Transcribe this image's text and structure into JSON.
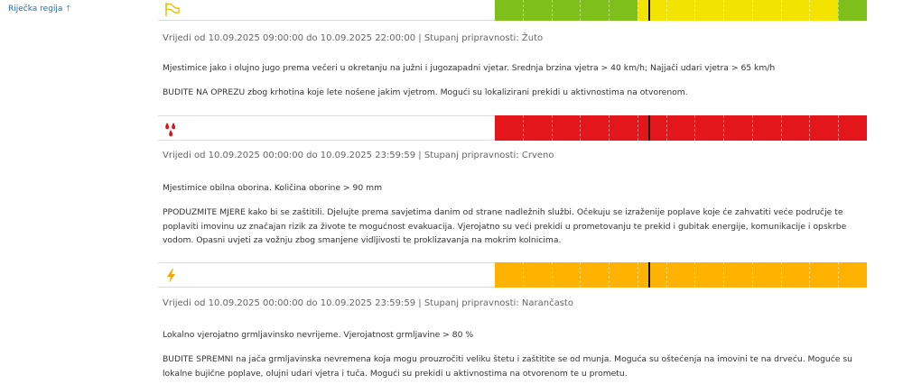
{
  "sidebar": {
    "region_link": "Riječka regija",
    "region_arrow": "🡑"
  },
  "warnings": [
    {
      "icon": "wind-flag-icon",
      "level_color": "#f2e300",
      "timeline_colors": [
        "#7fbf1b",
        "#7fbf1b",
        "#7fbf1b",
        "#7fbf1b",
        "#7fbf1b",
        "#f2e300",
        "#f2e300",
        "#f2e300",
        "#f2e300",
        "#f2e300",
        "#f2e300",
        "#f2e300",
        "#7fbf1b"
      ],
      "validity": "Vrijedi od 10.09.2025 09:00:00 do 10.09.2025 22:00:00 | Stupanj pripravnosti: Žuto",
      "description": "Mjestimice jako i olujno jugo prema večeri u okretanju na južni i jugozapadni vjetar. Srednja brzina vjetra > 40 km/h; Najjači udari vjetra > 65 km/h",
      "advice": "BUDITE NA OPREZU zbog krhotina koje lete nošene jakim vjetrom. Mogući su lokalizirani prekidi u aktivnostima na otvorenom."
    },
    {
      "icon": "rain-drops-icon",
      "level_color": "#e3161b",
      "timeline_colors": [
        "#e3161b",
        "#e3161b",
        "#e3161b",
        "#e3161b",
        "#e3161b",
        "#e3161b",
        "#e3161b",
        "#e3161b",
        "#e3161b",
        "#e3161b",
        "#e3161b",
        "#e3161b",
        "#e3161b"
      ],
      "validity": "Vrijedi od 10.09.2025 00:00:00 do 10.09.2025 23:59:59 | Stupanj pripravnosti: Crveno",
      "description": "Mjestimice obilna oborina. Količina oborine > 90 mm",
      "advice": "PPODUZMITE MJERE kako bi se zaštitili. Djelujte prema savjetima danim od strane nadležnih službi. Očekuju se izraženije poplave koje će zahvatiti veće područje te poplaviti imovinu uz značajan rizik za živote te mogućnost evakuacija. Vjerojatno su veći prekidi u prometovanju te prekid i gubitak energije, komunikacije i opskrbe vodom. Opasni uvjeti za vožnju zbog smanjene vidljivosti te proklizavanja na mokrim kolnicima."
    },
    {
      "icon": "lightning-icon",
      "level_color": "#ffb300",
      "timeline_colors": [
        "#ffb300",
        "#ffb300",
        "#ffb300",
        "#ffb300",
        "#ffb300",
        "#ffb300",
        "#ffb300",
        "#ffb300",
        "#ffb300",
        "#ffb300",
        "#ffb300",
        "#ffb300",
        "#ffb300"
      ],
      "validity": "Vrijedi od 10.09.2025 00:00:00 do 10.09.2025 23:59:59 | Stupanj pripravnosti: Narančasto",
      "description": "Lokalno vjerojatno grmljavinsko nevrijeme. Vjerojatnost grmljavine > 80 %",
      "advice": "BUDITE SPREMNI na jača grmljavinska nevremena koja mogu prouzročiti veliku štetu i zaštitite se od munja. Moguća su oštećenja na imovini te na drveću. Moguće su lokalne bujične poplave, olujni udari vjetra i tuča. Mogući su prekidi u aktivnostima na otvorenom te u prometu."
    }
  ]
}
